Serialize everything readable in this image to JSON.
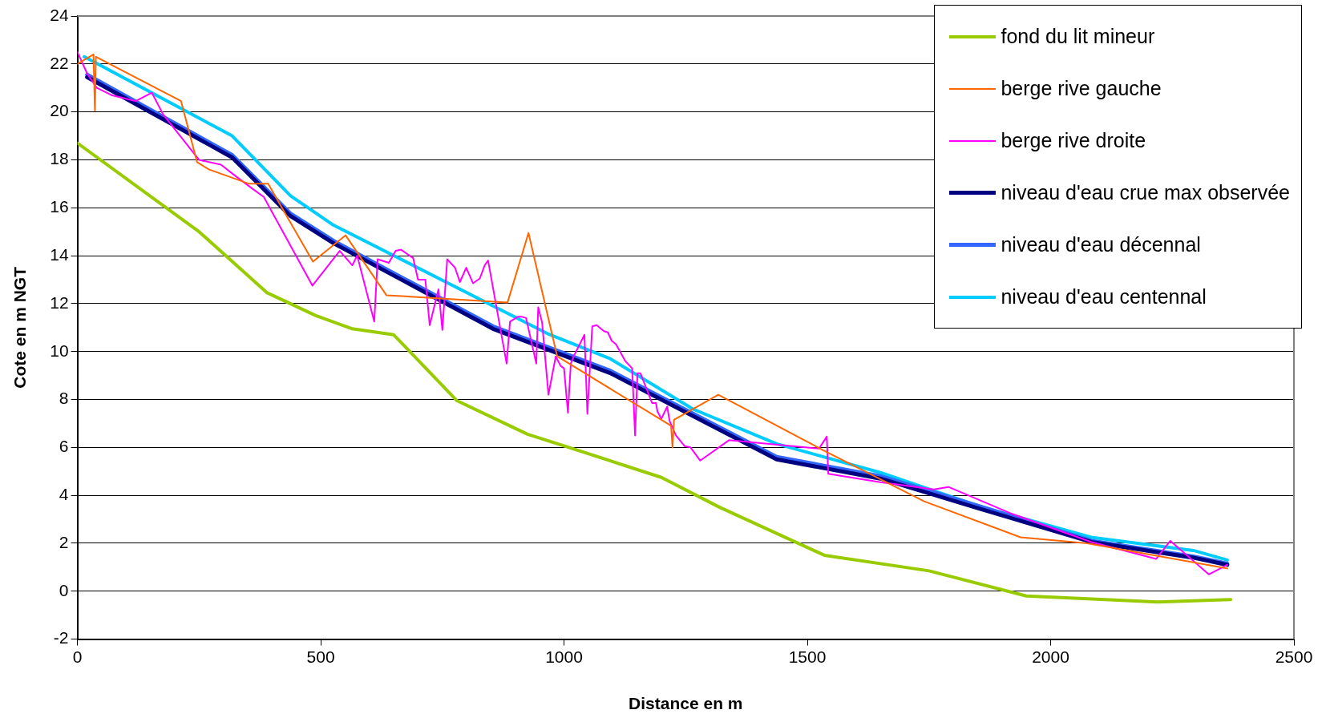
{
  "chart_data": {
    "type": "line",
    "xlabel": "Distance en m",
    "ylabel": "Cote en m NGT",
    "xlim": [
      0,
      2500
    ],
    "xticks": [
      0,
      500,
      1000,
      1500,
      2000,
      2500
    ],
    "ylim": [
      -2,
      24
    ],
    "yticks": [
      -2,
      0,
      2,
      4,
      6,
      8,
      10,
      12,
      14,
      16,
      18,
      20,
      22,
      24
    ],
    "grid": "y",
    "legend": "top right",
    "marker": "none",
    "line_style": "solid",
    "series": [
      {
        "name": "fond du lit mineur",
        "color": "#99cc00",
        "x": [
          0,
          250,
          390,
          490,
          565,
          650,
          780,
          925,
          1010,
          1200,
          1320,
          1535,
          1750,
          1950,
          2220,
          2370
        ],
        "values": [
          18.7,
          15.0,
          12.45,
          11.5,
          10.95,
          10.7,
          7.95,
          6.55,
          6.0,
          4.75,
          3.5,
          1.5,
          0.85,
          -0.2,
          -0.45,
          -0.35
        ]
      },
      {
        "name": "berge rive gauche",
        "color": "#ff6600",
        "x": [
          0,
          33,
          36,
          38,
          213,
          246,
          270,
          353,
          392,
          484,
          551,
          635,
          884,
          927,
          986,
          1200,
          1220,
          1223,
          1226,
          1317,
          1531,
          1740,
          1938,
          2075,
          2363
        ],
        "values": [
          22.0,
          22.4,
          20.05,
          22.3,
          20.45,
          17.9,
          17.6,
          17.0,
          17.0,
          13.75,
          14.85,
          12.35,
          12.05,
          14.95,
          9.8,
          7.15,
          6.9,
          6.0,
          7.15,
          8.2,
          5.9,
          3.75,
          2.25,
          2.0,
          0.95
        ]
      },
      {
        "name": "berge rive droite",
        "color": "#ff00ff",
        "x": [
          0,
          20,
          40,
          70,
          120,
          153,
          176,
          242,
          250,
          295,
          320,
          356,
          383,
          483,
          539,
          565,
          575,
          610,
          617,
          640,
          654,
          665,
          690,
          700,
          715,
          724,
          742,
          750,
          760,
          776,
          786,
          799,
          813,
          827,
          837,
          844,
          882,
          889,
          905,
          914,
          922,
          943,
          947,
          955,
          968,
          983,
          993,
          1000,
          1008,
          1014,
          1021,
          1042,
          1048,
          1058,
          1067,
          1082,
          1090,
          1098,
          1107,
          1126,
          1140,
          1146,
          1151,
          1157,
          1181,
          1189,
          1192,
          1200,
          1212,
          1217,
          1230,
          1248,
          1260,
          1280,
          1339,
          1524,
          1540,
          1543,
          1650,
          1760,
          1790,
          1918,
          2084,
          2217,
          2246,
          2325,
          2363
        ],
        "values": [
          22.5,
          21.6,
          21.0,
          20.7,
          20.45,
          20.8,
          19.9,
          18.2,
          18.0,
          17.8,
          17.4,
          16.85,
          16.45,
          12.75,
          14.2,
          13.6,
          14.0,
          11.25,
          13.85,
          13.7,
          14.2,
          14.25,
          13.9,
          13.0,
          13.0,
          11.1,
          12.6,
          10.9,
          13.85,
          13.5,
          12.9,
          13.5,
          12.85,
          13.05,
          13.6,
          13.8,
          9.5,
          11.25,
          11.45,
          11.45,
          11.4,
          9.5,
          11.85,
          11.2,
          8.2,
          9.8,
          9.4,
          9.3,
          7.45,
          9.5,
          9.85,
          10.7,
          7.4,
          11.05,
          11.1,
          10.85,
          10.8,
          10.45,
          10.3,
          9.6,
          9.3,
          6.5,
          9.1,
          9.1,
          7.85,
          7.85,
          7.5,
          7.2,
          7.7,
          7.1,
          6.5,
          6.05,
          6.0,
          5.45,
          6.3,
          5.95,
          6.45,
          4.9,
          4.55,
          4.25,
          4.35,
          3.25,
          2.05,
          1.35,
          2.1,
          0.7,
          1.1
        ]
      },
      {
        "name": "niveau d'eau crue max observée",
        "color": "#000080",
        "x": [
          20,
          318,
          438,
          528,
          854,
          1095,
          1437,
          1650,
          1853,
          2084,
          2293,
          2363
        ],
        "values": [
          21.45,
          18.1,
          15.65,
          14.5,
          10.95,
          9.1,
          5.5,
          4.7,
          3.45,
          2.05,
          1.4,
          1.1
        ]
      },
      {
        "name": "niveau d'eau décennal",
        "color": "#3366ff",
        "x": [
          20,
          318,
          438,
          528,
          854,
          1095,
          1437,
          1650,
          1853,
          2084,
          2293,
          2363
        ],
        "values": [
          21.55,
          18.2,
          15.75,
          14.6,
          11.05,
          9.2,
          5.6,
          4.8,
          3.55,
          2.1,
          1.45,
          1.15
        ]
      },
      {
        "name": "niveau d'eau centennal",
        "color": "#00ccff",
        "x": [
          14,
          318,
          438,
          524,
          966,
          1095,
          1265,
          1437,
          1650,
          1853,
          2083,
          2293,
          2363
        ],
        "values": [
          22.3,
          19.0,
          16.5,
          15.3,
          10.75,
          9.7,
          7.6,
          6.15,
          4.95,
          3.55,
          2.25,
          1.7,
          1.3
        ]
      }
    ]
  }
}
